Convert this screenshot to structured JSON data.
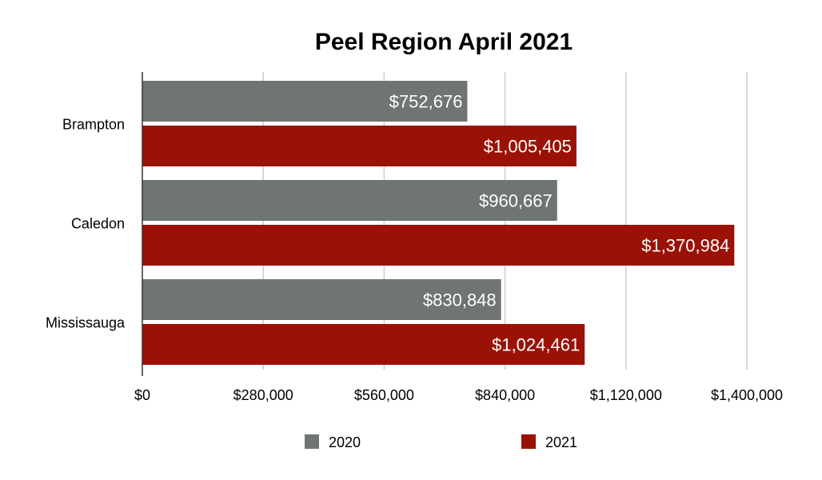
{
  "chart_data": {
    "type": "bar",
    "orientation": "horizontal",
    "title": "Peel Region April 2021",
    "categories": [
      "Brampton",
      "Caledon",
      "Mississauga"
    ],
    "series": [
      {
        "name": "2020",
        "color": "#6f7572",
        "values": [
          752676,
          960667,
          830848
        ],
        "labels": [
          "$752,676",
          "$960,667",
          "$830,848"
        ]
      },
      {
        "name": "2021",
        "color": "#9a1206",
        "values": [
          1005405,
          1370984,
          1024461
        ],
        "labels": [
          "$1,005,405",
          "$1,370,984",
          "$1,024,461"
        ]
      }
    ],
    "xlim": [
      0,
      1400000
    ],
    "xticks": [
      0,
      280000,
      560000,
      840000,
      1120000,
      1400000
    ],
    "xtick_labels": [
      "$0",
      "$280,000",
      "$560,000",
      "$840,000",
      "$1,120,000",
      "$1,400,000"
    ],
    "grid": true,
    "gridline_color": "#cccccc",
    "legend_position": "bottom"
  }
}
